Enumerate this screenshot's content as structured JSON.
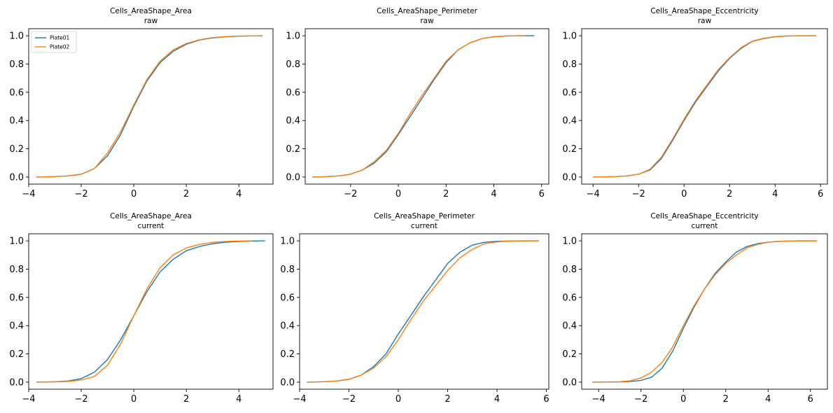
{
  "figure": {
    "colors": {
      "Plate01": "#1f77b4",
      "Plate02": "#ff7f0e"
    },
    "legend": {
      "entries": [
        "Plate01",
        "Plate02"
      ],
      "placement": "upper-left",
      "panel": 0
    }
  },
  "chart_data": [
    {
      "type": "line",
      "title": "Cells_AreaShape_Area",
      "subtitle": "raw",
      "xlim": [
        -4.0,
        5.3
      ],
      "ylim": [
        -0.05,
        1.05
      ],
      "xticks": [
        -4,
        -2,
        0,
        2,
        4
      ],
      "yticks": [
        0.0,
        0.2,
        0.4,
        0.6,
        0.8,
        1.0
      ],
      "xtick_labels": [
        "−4",
        "−2",
        "0",
        "2",
        "4"
      ],
      "ytick_labels": [
        "0.0",
        "0.2",
        "0.4",
        "0.6",
        "0.8",
        "1.0"
      ],
      "series": [
        {
          "name": "Plate01",
          "x": [
            -3.7,
            -3.0,
            -2.5,
            -2.0,
            -1.5,
            -1.0,
            -0.5,
            0.0,
            0.5,
            1.0,
            1.5,
            2.0,
            2.5,
            3.0,
            3.5,
            4.0,
            4.5,
            4.9
          ],
          "y": [
            0.0,
            0.003,
            0.008,
            0.02,
            0.06,
            0.15,
            0.3,
            0.5,
            0.68,
            0.81,
            0.89,
            0.94,
            0.97,
            0.985,
            0.993,
            0.997,
            0.999,
            1.0
          ]
        },
        {
          "name": "Plate02",
          "x": [
            -3.7,
            -3.0,
            -2.5,
            -2.0,
            -1.5,
            -1.0,
            -0.5,
            0.0,
            0.5,
            1.0,
            1.5,
            2.0,
            2.5,
            3.0,
            3.5,
            4.0,
            4.5,
            4.9
          ],
          "y": [
            0.0,
            0.003,
            0.008,
            0.02,
            0.06,
            0.17,
            0.32,
            0.51,
            0.69,
            0.82,
            0.9,
            0.945,
            0.972,
            0.987,
            0.994,
            0.998,
            0.999,
            1.0
          ]
        }
      ]
    },
    {
      "type": "line",
      "title": "Cells_AreaShape_Perimeter",
      "subtitle": "raw",
      "xlim": [
        -3.9,
        6.3
      ],
      "ylim": [
        -0.05,
        1.05
      ],
      "xticks": [
        -2,
        0,
        2,
        4,
        6
      ],
      "yticks": [
        0.0,
        0.2,
        0.4,
        0.6,
        0.8,
        1.0
      ],
      "xtick_labels": [
        "−2",
        "0",
        "2",
        "4",
        "6"
      ],
      "ytick_labels": [
        "0.0",
        "0.2",
        "0.4",
        "0.6",
        "0.8",
        "1.0"
      ],
      "series": [
        {
          "name": "Plate01",
          "x": [
            -3.6,
            -3.0,
            -2.5,
            -2.0,
            -1.5,
            -1.0,
            -0.5,
            0.0,
            0.5,
            1.0,
            1.5,
            2.0,
            2.5,
            3.0,
            3.5,
            4.0,
            4.5,
            5.0,
            5.7
          ],
          "y": [
            0.0,
            0.003,
            0.008,
            0.02,
            0.05,
            0.1,
            0.18,
            0.3,
            0.43,
            0.56,
            0.69,
            0.81,
            0.9,
            0.95,
            0.98,
            0.993,
            0.998,
            1.0,
            1.0
          ]
        },
        {
          "name": "Plate02",
          "x": [
            -3.6,
            -3.0,
            -2.5,
            -2.0,
            -1.5,
            -1.0,
            -0.5,
            0.0,
            0.5,
            1.0,
            1.5,
            2.0,
            2.5,
            3.0,
            3.5,
            4.0,
            4.5,
            5.0,
            5.3
          ],
          "y": [
            0.0,
            0.003,
            0.008,
            0.02,
            0.05,
            0.11,
            0.19,
            0.31,
            0.45,
            0.58,
            0.7,
            0.82,
            0.9,
            0.95,
            0.98,
            0.993,
            0.998,
            1.0,
            1.0
          ]
        }
      ]
    },
    {
      "type": "line",
      "title": "Cells_AreaShape_Eccentricity",
      "subtitle": "raw",
      "xlim": [
        -4.5,
        6.3
      ],
      "ylim": [
        -0.05,
        1.05
      ],
      "xticks": [
        -4,
        -2,
        0,
        2,
        4,
        6
      ],
      "yticks": [
        0.0,
        0.2,
        0.4,
        0.6,
        0.8,
        1.0
      ],
      "xtick_labels": [
        "−4",
        "−2",
        "0",
        "2",
        "4",
        "6"
      ],
      "ytick_labels": [
        "0.0",
        "0.2",
        "0.4",
        "0.6",
        "0.8",
        "1.0"
      ],
      "series": [
        {
          "name": "Plate01",
          "x": [
            -4.0,
            -3.0,
            -2.5,
            -2.0,
            -1.5,
            -1.0,
            -0.5,
            0.0,
            0.5,
            1.0,
            1.5,
            2.0,
            2.5,
            3.0,
            3.5,
            4.0,
            4.5,
            5.0,
            5.8
          ],
          "y": [
            0.0,
            0.003,
            0.008,
            0.02,
            0.05,
            0.13,
            0.26,
            0.4,
            0.53,
            0.64,
            0.75,
            0.84,
            0.91,
            0.96,
            0.98,
            0.993,
            0.998,
            1.0,
            1.0
          ]
        },
        {
          "name": "Plate02",
          "x": [
            -4.0,
            -3.0,
            -2.5,
            -2.0,
            -1.5,
            -1.0,
            -0.5,
            0.0,
            0.5,
            1.0,
            1.5,
            2.0,
            2.5,
            3.0,
            3.5,
            4.0,
            4.5,
            5.0,
            5.8
          ],
          "y": [
            0.0,
            0.003,
            0.008,
            0.02,
            0.055,
            0.14,
            0.27,
            0.41,
            0.54,
            0.65,
            0.76,
            0.845,
            0.915,
            0.962,
            0.982,
            0.994,
            0.998,
            1.0,
            1.0
          ]
        }
      ]
    },
    {
      "type": "line",
      "title": "Cells_AreaShape_Area",
      "subtitle": "current",
      "xlim": [
        -4.0,
        5.3
      ],
      "ylim": [
        -0.05,
        1.05
      ],
      "xticks": [
        -4,
        -2,
        0,
        2,
        4
      ],
      "yticks": [
        0.0,
        0.2,
        0.4,
        0.6,
        0.8,
        1.0
      ],
      "xtick_labels": [
        "−4",
        "−2",
        "0",
        "2",
        "4"
      ],
      "ytick_labels": [
        "0.0",
        "0.2",
        "0.4",
        "0.6",
        "0.8",
        "1.0"
      ],
      "series": [
        {
          "name": "Plate01",
          "x": [
            -3.7,
            -3.0,
            -2.5,
            -2.0,
            -1.5,
            -1.0,
            -0.5,
            0.0,
            0.5,
            1.0,
            1.5,
            2.0,
            2.5,
            3.0,
            3.5,
            4.0,
            4.5,
            5.0
          ],
          "y": [
            0.0,
            0.003,
            0.008,
            0.025,
            0.07,
            0.16,
            0.3,
            0.47,
            0.64,
            0.78,
            0.87,
            0.93,
            0.96,
            0.98,
            0.99,
            0.996,
            0.999,
            1.0
          ]
        },
        {
          "name": "Plate02",
          "x": [
            -3.7,
            -3.0,
            -2.5,
            -2.0,
            -1.5,
            -1.0,
            -0.5,
            0.0,
            0.5,
            1.0,
            1.5,
            2.0,
            2.5,
            3.0,
            3.5,
            4.0,
            4.5
          ],
          "y": [
            0.0,
            0.002,
            0.005,
            0.015,
            0.04,
            0.12,
            0.27,
            0.47,
            0.66,
            0.81,
            0.9,
            0.95,
            0.975,
            0.99,
            0.996,
            0.999,
            1.0
          ]
        }
      ]
    },
    {
      "type": "line",
      "title": "Cells_AreaShape_Perimeter",
      "subtitle": "current",
      "xlim": [
        -4.0,
        6.1
      ],
      "ylim": [
        -0.05,
        1.05
      ],
      "xticks": [
        -4,
        -2,
        0,
        2,
        4,
        6
      ],
      "yticks": [
        0.0,
        0.2,
        0.4,
        0.6,
        0.8,
        1.0
      ],
      "xtick_labels": [
        "−4",
        "−2",
        "0",
        "2",
        "4",
        "6"
      ],
      "ytick_labels": [
        "0.0",
        "0.2",
        "0.4",
        "0.6",
        "0.8",
        "1.0"
      ],
      "series": [
        {
          "name": "Plate01",
          "x": [
            -3.7,
            -3.0,
            -2.5,
            -2.0,
            -1.5,
            -1.0,
            -0.5,
            0.0,
            0.5,
            1.0,
            1.5,
            2.0,
            2.5,
            3.0,
            3.5,
            4.0,
            4.5,
            5.0,
            5.7
          ],
          "y": [
            0.0,
            0.003,
            0.008,
            0.02,
            0.05,
            0.11,
            0.2,
            0.34,
            0.47,
            0.6,
            0.72,
            0.84,
            0.92,
            0.97,
            0.99,
            0.997,
            0.999,
            1.0,
            1.0
          ]
        },
        {
          "name": "Plate02",
          "x": [
            -3.7,
            -3.0,
            -2.5,
            -2.0,
            -1.5,
            -1.0,
            -0.5,
            0.0,
            0.5,
            1.0,
            1.5,
            2.0,
            2.5,
            3.0,
            3.5,
            4.0,
            4.5,
            5.0,
            5.7
          ],
          "y": [
            0.0,
            0.003,
            0.008,
            0.02,
            0.05,
            0.1,
            0.18,
            0.3,
            0.44,
            0.57,
            0.68,
            0.79,
            0.88,
            0.94,
            0.98,
            0.993,
            0.998,
            1.0,
            1.0
          ]
        }
      ]
    },
    {
      "type": "line",
      "title": "Cells_AreaShape_Eccentricity",
      "subtitle": "current",
      "xlim": [
        -4.8,
        6.8
      ],
      "ylim": [
        -0.05,
        1.05
      ],
      "xticks": [
        -4,
        -2,
        0,
        2,
        4,
        6
      ],
      "yticks": [
        0.0,
        0.2,
        0.4,
        0.6,
        0.8,
        1.0
      ],
      "xtick_labels": [
        "−4",
        "−2",
        "0",
        "2",
        "4",
        "6"
      ],
      "ytick_labels": [
        "0.0",
        "0.2",
        "0.4",
        "0.6",
        "0.8",
        "1.0"
      ],
      "series": [
        {
          "name": "Plate01",
          "x": [
            -4.3,
            -3.0,
            -2.5,
            -2.0,
            -1.5,
            -1.0,
            -0.5,
            0.0,
            0.5,
            1.0,
            1.5,
            2.0,
            2.5,
            3.0,
            3.5,
            4.0,
            4.5,
            5.0,
            5.5,
            6.3
          ],
          "y": [
            0.0,
            0.002,
            0.005,
            0.012,
            0.035,
            0.1,
            0.22,
            0.38,
            0.53,
            0.66,
            0.77,
            0.85,
            0.92,
            0.96,
            0.98,
            0.99,
            0.997,
            0.999,
            1.0,
            1.0
          ]
        },
        {
          "name": "Plate02",
          "x": [
            -4.3,
            -3.0,
            -2.5,
            -2.0,
            -1.5,
            -1.0,
            -0.5,
            0.0,
            0.5,
            1.0,
            1.5,
            2.0,
            2.5,
            3.0,
            3.5,
            4.0,
            4.5,
            5.0,
            5.5,
            6.3
          ],
          "y": [
            0.0,
            0.003,
            0.01,
            0.03,
            0.07,
            0.14,
            0.25,
            0.4,
            0.54,
            0.66,
            0.76,
            0.84,
            0.9,
            0.95,
            0.975,
            0.99,
            0.996,
            0.999,
            1.0,
            1.0
          ]
        }
      ]
    }
  ]
}
